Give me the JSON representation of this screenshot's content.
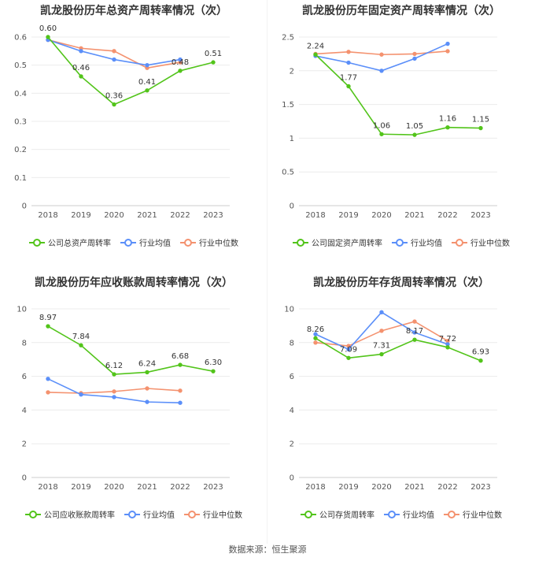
{
  "chart_data": [
    {
      "type": "line",
      "title": "凯龙股份历年总资产周转率情况（次）",
      "categories": [
        "2018",
        "2019",
        "2020",
        "2021",
        "2022",
        "2023"
      ],
      "ylim": [
        0,
        0.6
      ],
      "yticks": [
        "0",
        "0.1",
        "0.2",
        "0.3",
        "0.4",
        "0.5",
        "0.6"
      ],
      "series": [
        {
          "name": "公司总资产周转率",
          "color": "#52c41a",
          "values": [
            0.6,
            0.46,
            0.36,
            0.41,
            0.48,
            0.51
          ],
          "labels": [
            "0.60",
            "0.46",
            "0.36",
            "0.41",
            "0.48",
            "0.51"
          ]
        },
        {
          "name": "行业均值",
          "color": "#5b8ff9",
          "values": [
            0.59,
            0.55,
            0.52,
            0.5,
            0.52,
            null
          ]
        },
        {
          "name": "行业中位数",
          "color": "#f4926f",
          "values": [
            0.59,
            0.56,
            0.55,
            0.49,
            0.51,
            null
          ]
        }
      ]
    },
    {
      "type": "line",
      "title": "凯龙股份历年固定资产周转率情况（次）",
      "categories": [
        "2018",
        "2019",
        "2020",
        "2021",
        "2022",
        "2023"
      ],
      "ylim": [
        0,
        2.5
      ],
      "yticks": [
        "0",
        "0.5",
        "1",
        "1.5",
        "2",
        "2.5"
      ],
      "series": [
        {
          "name": "公司固定资产周转率",
          "color": "#52c41a",
          "values": [
            2.24,
            1.77,
            1.06,
            1.05,
            1.16,
            1.15
          ],
          "labels": [
            "2.24",
            "1.77",
            "1.06",
            "1.05",
            "1.16",
            "1.15"
          ]
        },
        {
          "name": "行业均值",
          "color": "#5b8ff9",
          "values": [
            2.22,
            2.12,
            2.0,
            2.18,
            2.4,
            null
          ]
        },
        {
          "name": "行业中位数",
          "color": "#f4926f",
          "values": [
            2.25,
            2.28,
            2.24,
            2.25,
            2.29,
            null
          ]
        }
      ]
    },
    {
      "type": "line",
      "title": "凯龙股份历年应收账款周转率情况（次）",
      "categories": [
        "2018",
        "2019",
        "2020",
        "2021",
        "2022",
        "2023"
      ],
      "ylim": [
        0,
        10
      ],
      "yticks": [
        "0",
        "2",
        "4",
        "6",
        "8",
        "10"
      ],
      "series": [
        {
          "name": "公司应收账款周转率",
          "color": "#52c41a",
          "values": [
            8.97,
            7.84,
            6.12,
            6.24,
            6.68,
            6.3
          ],
          "labels": [
            "8.97",
            "7.84",
            "6.12",
            "6.24",
            "6.68",
            "6.30"
          ]
        },
        {
          "name": "行业均值",
          "color": "#5b8ff9",
          "values": [
            5.85,
            4.92,
            4.77,
            4.48,
            4.43,
            null
          ]
        },
        {
          "name": "行业中位数",
          "color": "#f4926f",
          "values": [
            5.05,
            5.0,
            5.1,
            5.28,
            5.15,
            null
          ]
        }
      ]
    },
    {
      "type": "line",
      "title": "凯龙股份历年存货周转率情况（次）",
      "categories": [
        "2018",
        "2019",
        "2020",
        "2021",
        "2022",
        "2023"
      ],
      "ylim": [
        0,
        10
      ],
      "yticks": [
        "0",
        "2",
        "4",
        "6",
        "8",
        "10"
      ],
      "series": [
        {
          "name": "公司存货周转率",
          "color": "#52c41a",
          "values": [
            8.26,
            7.09,
            7.31,
            8.17,
            7.72,
            6.93
          ],
          "labels": [
            "8.26",
            "7.09",
            "7.31",
            "8.17",
            "7.72",
            "6.93"
          ]
        },
        {
          "name": "行业均值",
          "color": "#5b8ff9",
          "values": [
            8.5,
            7.6,
            9.8,
            8.6,
            7.9,
            null
          ]
        },
        {
          "name": "行业中位数",
          "color": "#f4926f",
          "values": [
            8.0,
            7.8,
            8.7,
            9.25,
            8.1,
            null
          ]
        }
      ]
    }
  ],
  "footer": {
    "source": "数据来源：恒生聚源"
  }
}
